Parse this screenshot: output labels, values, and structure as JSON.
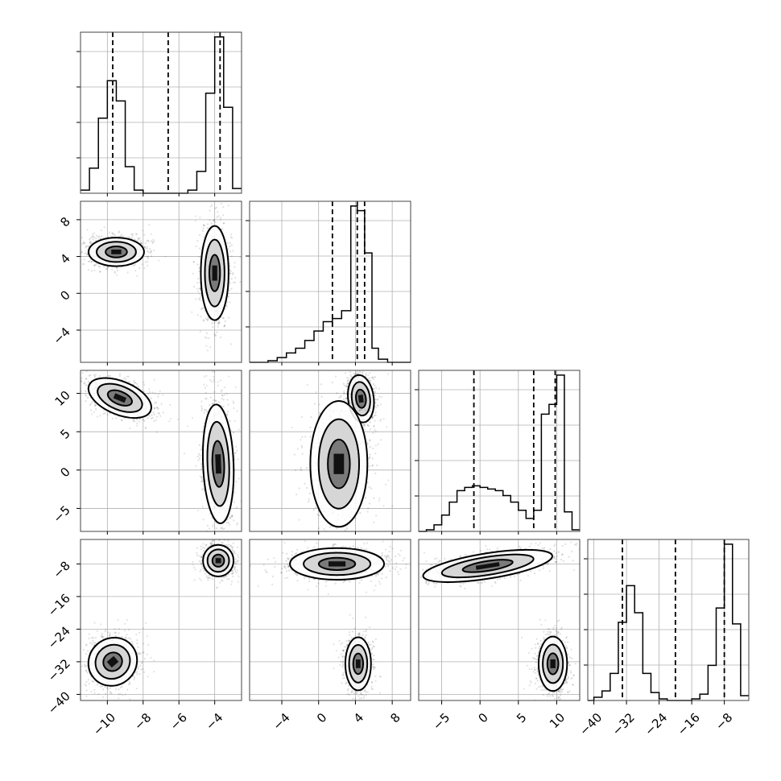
{
  "chart_data": {
    "type": "corner",
    "grid": true,
    "params": [
      {
        "range": [
          -11.5,
          -2.5
        ],
        "ticks": [
          "-10",
          "-8",
          "-6",
          "-4"
        ],
        "tick_values": [
          -10,
          -8,
          -6,
          -4
        ]
      },
      {
        "range": [
          -7.5,
          10
        ],
        "ticks": [
          "-4",
          "0",
          "4",
          "8"
        ],
        "tick_values": [
          -4,
          0,
          4,
          8
        ]
      },
      {
        "range": [
          -8,
          13
        ],
        "ticks": [
          "-5",
          "0",
          "5",
          "10"
        ],
        "tick_values": [
          -5,
          0,
          5,
          10
        ]
      },
      {
        "range": [
          -41.5,
          -2
        ],
        "ticks": [
          "-40",
          "-32",
          "-24",
          "-16",
          "-8"
        ],
        "tick_values": [
          -40,
          -32,
          -24,
          -16,
          -8
        ]
      }
    ],
    "diagonal": [
      {
        "quantiles": [
          -9.7,
          -6.6,
          -3.7
        ],
        "bins": [
          -11.5,
          -11.0,
          -10.5,
          -10.0,
          -9.5,
          -9.0,
          -8.5,
          -8.0,
          -7.5,
          -7.0,
          -6.5,
          -6.0,
          -5.5,
          -5.0,
          -4.5,
          -4.0,
          -3.5,
          -3.0,
          -2.5
        ],
        "counts": [
          0.02,
          0.16,
          0.48,
          0.72,
          0.59,
          0.17,
          0.02,
          0.0,
          0.0,
          0.0,
          0.0,
          0.0,
          0.02,
          0.14,
          0.64,
          1.0,
          0.55,
          0.03
        ]
      },
      {
        "quantiles": [
          1.5,
          4.2,
          5.0
        ],
        "bins": [
          -7.5,
          -5.5,
          -4.5,
          -3.5,
          -2.5,
          -1.5,
          -0.5,
          0.5,
          1.5,
          2.5,
          3.5,
          4.2,
          5.0,
          5.8,
          6.5,
          7.5,
          8.5,
          10.0
        ],
        "counts": [
          0.0,
          0.01,
          0.03,
          0.06,
          0.09,
          0.14,
          0.2,
          0.26,
          0.28,
          0.33,
          1.0,
          0.97,
          0.7,
          0.09,
          0.02,
          0.0,
          0.0
        ]
      },
      {
        "quantiles": [
          -0.8,
          7.0,
          9.8
        ],
        "bins": [
          -8.0,
          -7.0,
          -6.0,
          -5.0,
          -4.0,
          -3.0,
          -2.0,
          -1.0,
          0.0,
          1.0,
          2.0,
          3.0,
          4.0,
          5.0,
          6.0,
          7.0,
          8.0,
          9.0,
          10.0,
          11.0,
          12.0,
          13.0
        ],
        "counts": [
          0.0,
          0.01,
          0.04,
          0.1,
          0.18,
          0.25,
          0.27,
          0.28,
          0.27,
          0.26,
          0.25,
          0.22,
          0.18,
          0.13,
          0.08,
          0.13,
          0.72,
          0.78,
          0.96,
          0.12,
          0.01
        ]
      },
      {
        "quantiles": [
          -33.0,
          -20.0,
          -8.0
        ],
        "bins": [
          -41.5,
          -40.0,
          -38.0,
          -36.0,
          -34.0,
          -32.0,
          -30.0,
          -28.0,
          -26.0,
          -24.0,
          -22.0,
          -20.0,
          -18.0,
          -16.0,
          -14.0,
          -12.0,
          -10.0,
          -8.0,
          -6.0,
          -4.0,
          -2.0
        ],
        "counts": [
          0.0,
          0.02,
          0.06,
          0.17,
          0.49,
          0.72,
          0.55,
          0.17,
          0.05,
          0.01,
          0.0,
          0.0,
          0.0,
          0.01,
          0.04,
          0.22,
          0.58,
          0.98,
          0.48,
          0.03
        ]
      }
    ],
    "pairs": [
      {
        "row": 1,
        "col": 0,
        "modes": [
          {
            "center": [
              -9.5,
              4.5
            ],
            "sx": 1.0,
            "sy": 1.0,
            "rot": 0
          },
          {
            "center": [
              -4.0,
              2.2
            ],
            "sx": 0.5,
            "sy": 3.3,
            "rot": 0
          }
        ]
      },
      {
        "row": 2,
        "col": 0,
        "modes": [
          {
            "center": [
              -9.3,
              9.4
            ],
            "sx": 1.2,
            "sy": 1.4,
            "rot": -0.5
          },
          {
            "center": [
              -3.8,
              0.8
            ],
            "sx": 0.55,
            "sy": 5.0,
            "rot": 0.05
          }
        ]
      },
      {
        "row": 2,
        "col": 1,
        "modes": [
          {
            "center": [
              4.6,
              9.3
            ],
            "sx": 0.9,
            "sy": 2.0,
            "rot": 0.15
          },
          {
            "center": [
              2.2,
              0.8
            ],
            "sx": 2.0,
            "sy": 5.3,
            "rot": 0
          }
        ]
      },
      {
        "row": 3,
        "col": 0,
        "modes": [
          {
            "center": [
              -3.8,
              -7.2
            ],
            "sx": 0.55,
            "sy": 2.5,
            "rot": 0
          },
          {
            "center": [
              -9.7,
              -32.0
            ],
            "sx": 0.9,
            "sy": 3.7,
            "rot": 0.9
          }
        ]
      },
      {
        "row": 3,
        "col": 1,
        "modes": [
          {
            "center": [
              2.0,
              -8.0
            ],
            "sx": 3.3,
            "sy": 2.5,
            "rot": 0
          },
          {
            "center": [
              4.3,
              -32.5
            ],
            "sx": 0.9,
            "sy": 4.2,
            "rot": 0
          }
        ]
      },
      {
        "row": 3,
        "col": 2,
        "modes": [
          {
            "center": [
              1.0,
              -8.5
            ],
            "sx": 5.5,
            "sy": 2.0,
            "rot": 0.2
          },
          {
            "center": [
              9.5,
              -32.5
            ],
            "sx": 1.2,
            "sy": 4.3,
            "rot": 0
          }
        ]
      }
    ]
  }
}
